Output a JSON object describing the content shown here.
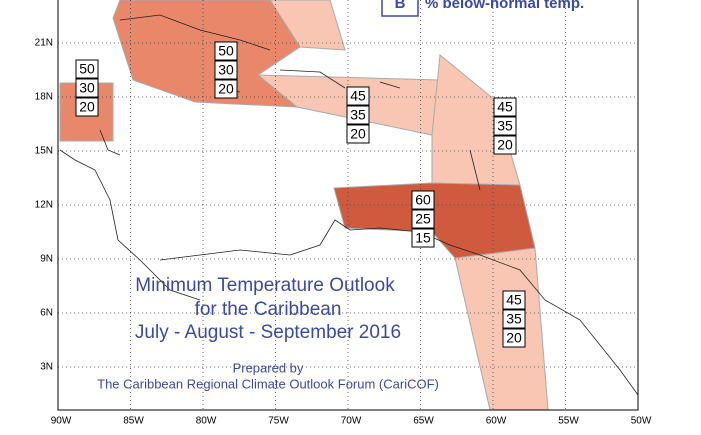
{
  "legend": {
    "symbol": "B",
    "text": "% below-normal temp."
  },
  "title": {
    "lines": [
      "Minimum Temperature Outlook",
      "for the Caribbean",
      "July - August - September 2016"
    ]
  },
  "credit": {
    "lines": [
      "Prepared by",
      "The Caribbean Regional Climate Outlook Forum (CariCOF)"
    ]
  },
  "latitude_labels": [
    "21N",
    "18N",
    "15N",
    "12N",
    "9N",
    "6N",
    "3N"
  ],
  "longitude_labels": [
    "90W",
    "85W",
    "80W",
    "75W",
    "70W",
    "65W",
    "60W",
    "55W",
    "50W"
  ],
  "regions": [
    {
      "values": [
        50,
        30,
        20
      ]
    },
    {
      "values": [
        50,
        30,
        20
      ]
    },
    {
      "values": [
        45,
        35,
        20
      ]
    },
    {
      "values": [
        45,
        35,
        20
      ]
    },
    {
      "values": [
        60,
        25,
        15
      ]
    },
    {
      "values": [
        45,
        35,
        20
      ]
    }
  ]
}
